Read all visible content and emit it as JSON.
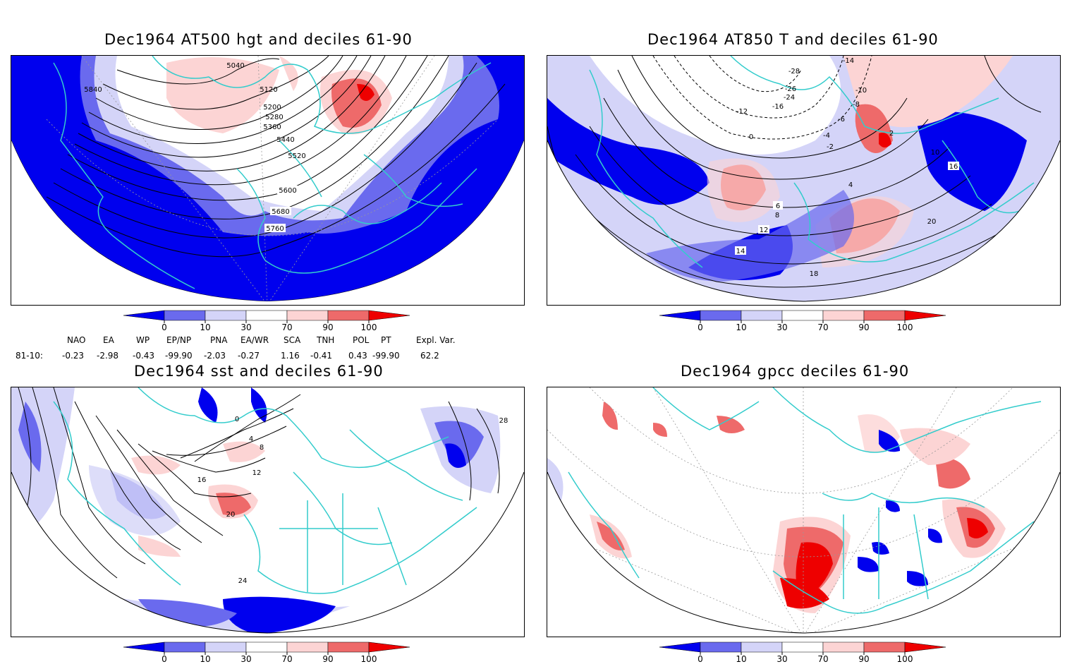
{
  "panels": [
    {
      "title": "Dec1964 AT500 hgt and deciles 61-90",
      "contour_labels": [
        "5040",
        "5120",
        "5200",
        "5280",
        "5360",
        "5440",
        "5520",
        "5600",
        "5680",
        "5760",
        "5840"
      ]
    },
    {
      "title": "Dec1964 AT850 T and deciles 61-90",
      "contour_labels": [
        "-28",
        "-26",
        "-24",
        "-16",
        "-14",
        "-12",
        "-10",
        "-8",
        "-6",
        "-4",
        "-2",
        "0",
        "2",
        "4",
        "6",
        "8",
        "10",
        "12",
        "14",
        "16",
        "18",
        "20"
      ]
    },
    {
      "title": "Dec1964 sst and deciles 61-90",
      "contour_labels": [
        "0",
        "4",
        "8",
        "12",
        "16",
        "20",
        "24",
        "28"
      ]
    },
    {
      "title": "Dec1964 gpcc deciles 61-90",
      "contour_labels": []
    }
  ],
  "colorbar": {
    "ticks": [
      "0",
      "10",
      "30",
      "70",
      "90",
      "100"
    ],
    "colors": [
      "#0000ee",
      "#6a6aee",
      "#d4d4f8",
      "#ffffff",
      "#fcd4d4",
      "#ee6a6a",
      "#ee0000"
    ]
  },
  "indices": {
    "row_label": "81-10:",
    "headers": [
      "NAO",
      "EA",
      "WP",
      "EP/NP",
      "PNA",
      "EA/WR",
      "SCA",
      "TNH",
      "POL",
      "PT",
      "Expl. Var."
    ],
    "values": [
      "-0.23",
      "-2.98",
      "-0.43",
      "-99.90",
      "-2.03",
      "-0.27",
      "1.16",
      "-0.41",
      "0.43",
      "-99.90",
      "62.2"
    ]
  },
  "map_colors": {
    "coast": "#33cccc",
    "contour": "#000000",
    "grid": "#999999"
  }
}
